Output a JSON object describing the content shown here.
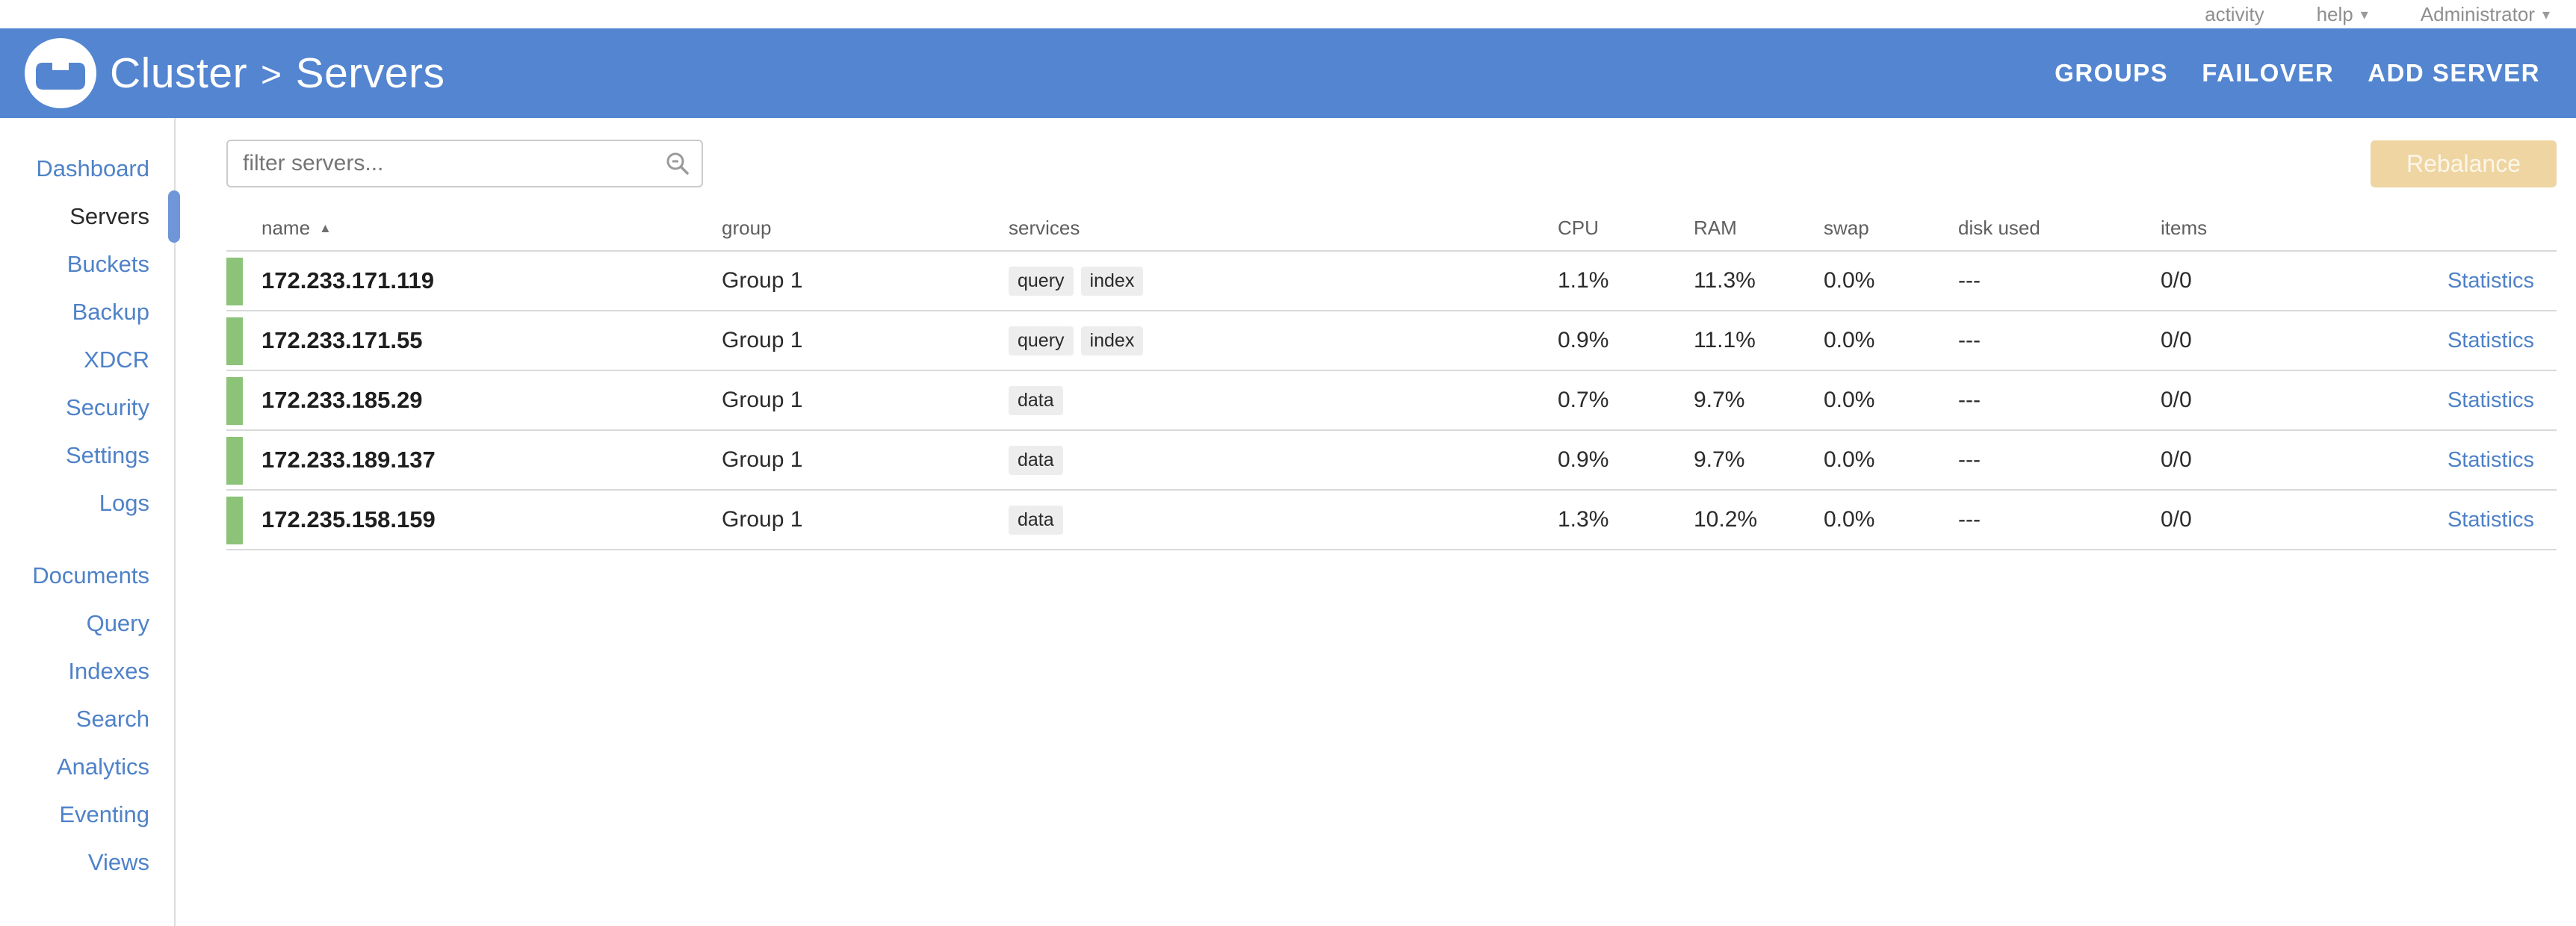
{
  "topbar": {
    "items": [
      {
        "label": "activity",
        "caret": false
      },
      {
        "label": "help",
        "caret": true
      },
      {
        "label": "Administrator",
        "caret": true
      }
    ]
  },
  "header": {
    "breadcrumb": {
      "cluster": "Cluster",
      "separator": ">",
      "page": "Servers"
    },
    "actions": [
      "GROUPS",
      "FAILOVER",
      "ADD SERVER"
    ]
  },
  "sidebar": {
    "groups": [
      {
        "items": [
          {
            "label": "Dashboard",
            "active": false
          },
          {
            "label": "Servers",
            "active": true
          },
          {
            "label": "Buckets",
            "active": false
          },
          {
            "label": "Backup",
            "active": false
          },
          {
            "label": "XDCR",
            "active": false
          },
          {
            "label": "Security",
            "active": false
          },
          {
            "label": "Settings",
            "active": false
          },
          {
            "label": "Logs",
            "active": false
          }
        ]
      },
      {
        "items": [
          {
            "label": "Documents",
            "active": false
          },
          {
            "label": "Query",
            "active": false
          },
          {
            "label": "Indexes",
            "active": false
          },
          {
            "label": "Search",
            "active": false
          },
          {
            "label": "Analytics",
            "active": false
          },
          {
            "label": "Eventing",
            "active": false
          },
          {
            "label": "Views",
            "active": false
          }
        ]
      }
    ]
  },
  "toolbar": {
    "filter_placeholder": "filter servers...",
    "rebalance_label": "Rebalance"
  },
  "table": {
    "columns": [
      "name",
      "group",
      "services",
      "CPU",
      "RAM",
      "swap",
      "disk used",
      "items",
      ""
    ],
    "sort_column": "name",
    "sort_direction": "asc",
    "rows": [
      {
        "name": "172.233.171.119",
        "group": "Group 1",
        "services": [
          "query",
          "index"
        ],
        "cpu": "1.1%",
        "ram": "11.3%",
        "swap": "0.0%",
        "disk_used": "---",
        "items": "0/0",
        "link": "Statistics",
        "status_color": "#8DC378"
      },
      {
        "name": "172.233.171.55",
        "group": "Group 1",
        "services": [
          "query",
          "index"
        ],
        "cpu": "0.9%",
        "ram": "11.1%",
        "swap": "0.0%",
        "disk_used": "---",
        "items": "0/0",
        "link": "Statistics",
        "status_color": "#8DC378"
      },
      {
        "name": "172.233.185.29",
        "group": "Group 1",
        "services": [
          "data"
        ],
        "cpu": "0.7%",
        "ram": "9.7%",
        "swap": "0.0%",
        "disk_used": "---",
        "items": "0/0",
        "link": "Statistics",
        "status_color": "#8DC378"
      },
      {
        "name": "172.233.189.137",
        "group": "Group 1",
        "services": [
          "data"
        ],
        "cpu": "0.9%",
        "ram": "9.7%",
        "swap": "0.0%",
        "disk_used": "---",
        "items": "0/0",
        "link": "Statistics",
        "status_color": "#8DC378"
      },
      {
        "name": "172.235.158.159",
        "group": "Group 1",
        "services": [
          "data"
        ],
        "cpu": "1.3%",
        "ram": "10.2%",
        "swap": "0.0%",
        "disk_used": "---",
        "items": "0/0",
        "link": "Statistics",
        "status_color": "#8DC378"
      }
    ]
  },
  "icons": {
    "sort_asc": "▲",
    "caret_down": "▾"
  },
  "colors": {
    "header_blue": "#5385D0",
    "link_blue": "#4E81C8",
    "healthy_green": "#8DC378",
    "rebalance_tan": "#EFD5A1",
    "active_indicator": "#6E96D8"
  }
}
